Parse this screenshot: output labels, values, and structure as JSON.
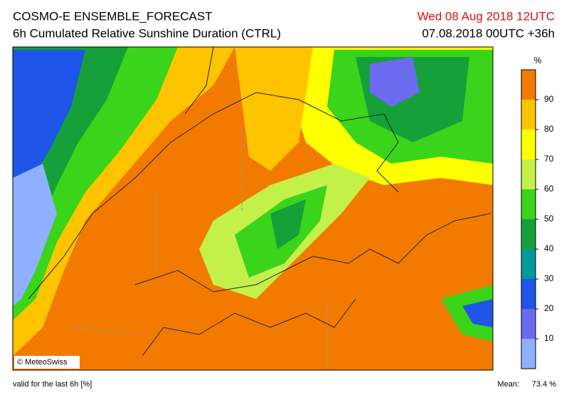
{
  "header": {
    "title": "COSMO-E ENSEMBLE_FORECAST",
    "subtitle": "6h Cumulated Relative Sunshine Duration (CTRL)",
    "valid_time": "Wed 08 Aug 2018 12UTC",
    "run_time": "07.08.2018 00UTC +36h"
  },
  "map": {
    "copyright": "© MeteoSwiss"
  },
  "colorbar": {
    "unit": "%",
    "range": [
      0,
      100
    ],
    "ticks": [
      10,
      20,
      30,
      40,
      50,
      60,
      70,
      80,
      90
    ],
    "colors": [
      "#8fb0ff",
      "#6b6bf0",
      "#1f55e8",
      "#00999a",
      "#16a03a",
      "#3ad41a",
      "#c4f04a",
      "#ffff00",
      "#ffc400",
      "#f27a00"
    ]
  },
  "footer": {
    "note": "valid for the last 6h [%]",
    "mean_label": "Mean:",
    "mean_value": "73.4 %"
  }
}
